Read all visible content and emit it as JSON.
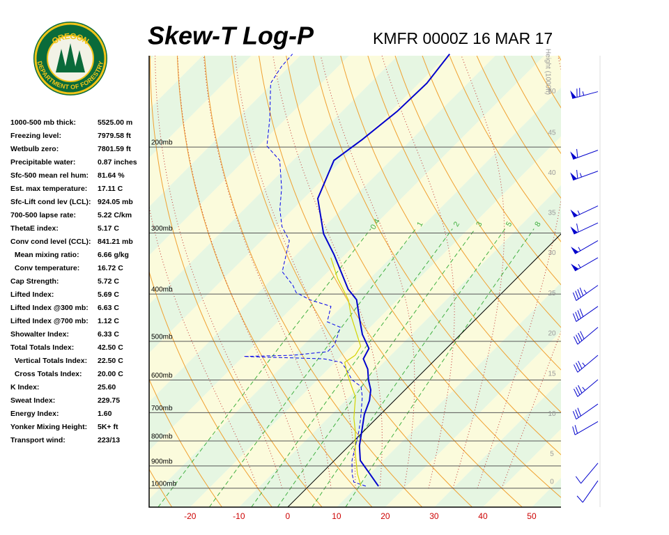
{
  "header": {
    "title": "Skew-T Log-P",
    "subtitle": "KMFR 0000Z 16 MAR 17"
  },
  "logo": {
    "top": "OREGON",
    "bottom": "DEPARTMENT OF FORESTRY"
  },
  "stats": [
    [
      "1000-500 mb thick:",
      "5525.00 m"
    ],
    [
      "Freezing level:",
      "7979.58 ft"
    ],
    [
      "Wetbulb zero:",
      "7801.59 ft"
    ],
    [
      "Precipitable water:",
      "0.87 inches"
    ],
    [
      "Sfc-500 mean rel hum:",
      "81.64 %"
    ],
    [
      "Est. max temperature:",
      "17.11 C"
    ],
    [
      "Sfc-Lift cond lev (LCL):",
      "924.05 mb"
    ],
    [
      "700-500 lapse rate:",
      "5.22 C/km"
    ],
    [
      "ThetaE index:",
      "5.17 C"
    ],
    [
      "Conv cond level (CCL):",
      "841.21 mb"
    ],
    [
      "  Mean mixing ratio:",
      "6.66 g/kg"
    ],
    [
      "  Conv temperature:",
      "16.72 C"
    ],
    [
      "Cap Strength:",
      "5.72 C"
    ],
    [
      "Lifted Index:",
      "5.69 C"
    ],
    [
      "Lifted Index @300 mb:",
      "6.63 C"
    ],
    [
      "Lifted Index @700 mb:",
      "1.12 C"
    ],
    [
      "Showalter Index:",
      "6.33 C"
    ],
    [
      "Total Totals Index:",
      "42.50 C"
    ],
    [
      "  Vertical Totals Index:",
      "22.50 C"
    ],
    [
      "  Cross Totals Index:",
      "20.00 C"
    ],
    [
      "K Index:",
      "25.60"
    ],
    [
      "Sweat Index:",
      "229.75"
    ],
    [
      "Energy Index:",
      "1.60"
    ],
    [
      "Yonker Mixing Height:",
      "5K+ ft"
    ],
    [
      "Transport wind:",
      "223/13"
    ]
  ],
  "chart_data": {
    "type": "skewt",
    "xlim": [
      -28.4,
      56
    ],
    "xticks": [
      -20,
      -10,
      0,
      10,
      20,
      30,
      40,
      50
    ],
    "ylim": [
      1093,
      130
    ],
    "yticks": [
      {
        "value": 200,
        "label": "200mb"
      },
      {
        "value": 300,
        "label": "300mb"
      },
      {
        "value": 400,
        "label": "400mb"
      },
      {
        "value": 500,
        "label": "500mb"
      },
      {
        "value": 600,
        "label": "600mb"
      },
      {
        "value": 700,
        "label": "700mb"
      },
      {
        "value": 800,
        "label": "800mb"
      },
      {
        "value": 900,
        "label": "900mb"
      },
      {
        "value": 1000,
        "label": "1000mb"
      }
    ],
    "height_label": "Height (1000ft)",
    "height_ticks": [
      0,
      5,
      10,
      15,
      20,
      25,
      30,
      35,
      40,
      45,
      50
    ],
    "height_pressures": [
      971,
      851,
      704,
      583,
      482,
      399,
      330,
      273,
      226,
      187,
      154
    ],
    "mixing_ratio_lines": [
      0.4,
      1,
      2,
      3,
      5,
      8
    ],
    "series": [
      {
        "name": "Temperature",
        "color": "#0000cc",
        "dash": false,
        "pressure": [
          990,
          933,
          877,
          818,
          766,
          706,
          661,
          629,
          599,
          570,
          543,
          517,
          484,
          446,
          411,
          391,
          332,
          301,
          255,
          213,
          193,
          169,
          148,
          129
        ],
        "values": [
          14.3,
          9.9,
          5.3,
          2.1,
          -0.3,
          -3.3,
          -5.1,
          -7.0,
          -9.6,
          -11.9,
          -14.9,
          -15.9,
          -20.1,
          -24.3,
          -28.4,
          -32.3,
          -42.3,
          -48.7,
          -57.1,
          -61.6,
          -60.1,
          -58.7,
          -58.4,
          -59.7
        ]
      },
      {
        "name": "Dewpoint",
        "color": "#0000ee",
        "dash": true,
        "pressure": [
          990,
          971,
          933,
          877,
          818,
          766,
          718,
          650,
          619,
          599,
          570,
          552,
          543,
          537,
          534,
          525,
          508,
          484,
          468,
          456,
          424,
          411,
          397,
          384,
          360,
          337,
          311,
          291,
          268,
          243,
          213,
          199,
          175,
          148,
          137,
          129
        ],
        "values": [
          11.7,
          8.4,
          6.3,
          3.6,
          1.3,
          -0.9,
          -3.3,
          -7.3,
          -9.7,
          -13.0,
          -16.3,
          -18.7,
          -23.0,
          -39.9,
          -30.1,
          -23.7,
          -23.7,
          -25.1,
          -26.1,
          -29.9,
          -32.3,
          -38.0,
          -42.3,
          -44.4,
          -49.4,
          -51.6,
          -54.3,
          -58.7,
          -62.7,
          -66.6,
          -72.7,
          -78.3,
          -83.3,
          -90.4,
          -91.6,
          -91.9
        ]
      },
      {
        "name": "Parcel",
        "color": "#d4d400",
        "dash": false,
        "pressure": [
          990,
          933,
          846,
          766,
          718,
          650,
          619,
          580,
          552,
          534,
          512,
          446,
          411,
          372,
          337
        ],
        "values": [
          10.7,
          7.4,
          2.7,
          -1.6,
          -4.7,
          -8.7,
          -11.6,
          -15.4,
          -18.0,
          -17.3,
          -18.0,
          -25.9,
          -30.1,
          -36.6,
          -42.3
        ]
      }
    ],
    "winds": {
      "pressure": [
        154,
        203,
        224,
        264,
        286,
        311,
        337,
        384,
        424,
        468,
        534,
        599,
        672,
        730,
        888,
        965
      ],
      "direction": [
        255,
        250,
        250,
        245,
        245,
        240,
        240,
        235,
        235,
        230,
        230,
        230,
        235,
        240,
        220,
        215
      ],
      "speed": [
        75,
        60,
        65,
        55,
        60,
        55,
        55,
        45,
        40,
        40,
        35,
        35,
        30,
        20,
        10,
        10
      ]
    }
  }
}
